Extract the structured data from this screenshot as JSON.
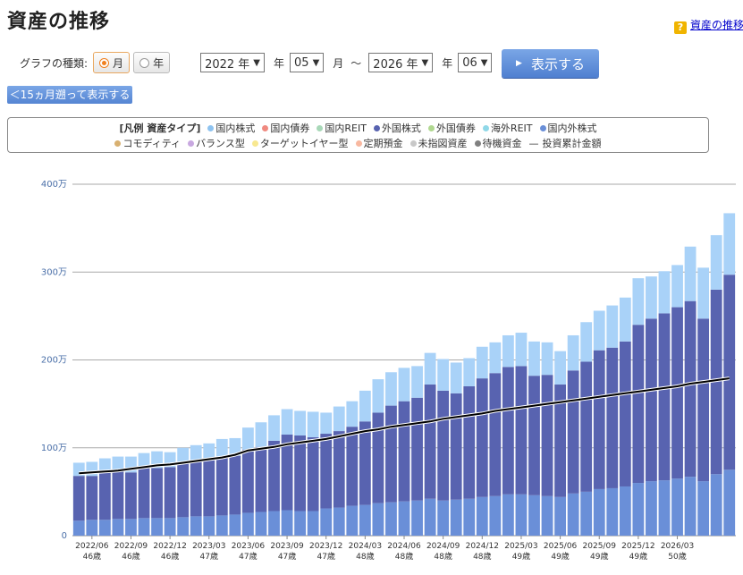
{
  "page": {
    "title": "資産の推移",
    "help_link": "資産の推移"
  },
  "controls": {
    "type_label": "グラフの種類:",
    "radio_month": "月",
    "radio_year": "年",
    "selected_type": "月",
    "start_year": "2022 年",
    "year_suffix": "年",
    "start_month": "05",
    "month_suffix": "月",
    "range_sep": "～",
    "end_year": "2026 年",
    "end_month": "06",
    "show_button": "表示する",
    "back_button": "＜15ヵ月遡って表示する"
  },
  "legend": {
    "header": "[凡例 資産タイプ]",
    "items": [
      {
        "label": "国内株式",
        "color": "#8ec3f0"
      },
      {
        "label": "国内債券",
        "color": "#f08a80"
      },
      {
        "label": "国内REIT",
        "color": "#a8d8b8"
      },
      {
        "label": "外国株式",
        "color": "#5863b0"
      },
      {
        "label": "外国債券",
        "color": "#b0d890"
      },
      {
        "label": "海外REIT",
        "color": "#90d8e8"
      },
      {
        "label": "国内外株式",
        "color": "#6a8fd8"
      },
      {
        "label": "コモディティ",
        "color": "#d8b070"
      },
      {
        "label": "バランス型",
        "color": "#c8a8e0"
      },
      {
        "label": "ターゲットイヤー型",
        "color": "#f8e890"
      },
      {
        "label": "定期預金",
        "color": "#f8b8a0"
      },
      {
        "label": "未指図資産",
        "color": "#c8c8c8"
      },
      {
        "label": "待機資金",
        "color": "#808080"
      }
    ],
    "line_label": "投資累計金額",
    "line_symbol": "—"
  },
  "chart_data": {
    "type": "bar",
    "stacked": true,
    "y_unit": "万",
    "ylim": [
      0,
      400
    ],
    "y_ticks": [
      "0",
      "100万",
      "200万",
      "300万",
      "400万"
    ],
    "y_tick_values": [
      0,
      100,
      200,
      300,
      400
    ],
    "x_tick_labels": [
      {
        "date": "2022/06",
        "age": "46歳",
        "index": 1
      },
      {
        "date": "2022/09",
        "age": "46歳",
        "index": 4
      },
      {
        "date": "2022/12",
        "age": "46歳",
        "index": 7
      },
      {
        "date": "2023/03",
        "age": "47歳",
        "index": 10
      },
      {
        "date": "2023/06",
        "age": "47歳",
        "index": 13
      },
      {
        "date": "2023/09",
        "age": "47歳",
        "index": 16
      },
      {
        "date": "2023/12",
        "age": "47歳",
        "index": 19
      },
      {
        "date": "2024/03",
        "age": "48歳",
        "index": 22
      },
      {
        "date": "2024/06",
        "age": "48歳",
        "index": 25
      },
      {
        "date": "2024/09",
        "age": "48歳",
        "index": 28
      },
      {
        "date": "2024/12",
        "age": "48歳",
        "index": 31
      },
      {
        "date": "2025/03",
        "age": "49歳",
        "index": 34
      },
      {
        "date": "2025/06",
        "age": "49歳",
        "index": 37
      },
      {
        "date": "2025/09",
        "age": "49歳",
        "index": 40
      },
      {
        "date": "2025/12",
        "age": "49歳",
        "index": 43
      },
      {
        "date": "2026/03",
        "age": "50歳",
        "index": 46
      }
    ],
    "x_start": "2022/05",
    "x_end": "2026/06",
    "series": [
      {
        "name": "国内外株式",
        "color": "#6a8fd8",
        "values": [
          17,
          18,
          18,
          19,
          19,
          20,
          20,
          20,
          21,
          22,
          22,
          23,
          24,
          26,
          27,
          28,
          29,
          28,
          28,
          31,
          32,
          34,
          35,
          37,
          38,
          39,
          40,
          42,
          40,
          41,
          42,
          44,
          45,
          47,
          47,
          46,
          45,
          44,
          48,
          50,
          53,
          54,
          56,
          60,
          62,
          63,
          65,
          67,
          62,
          70,
          75
        ]
      },
      {
        "name": "外国株式",
        "color": "#5863b0",
        "values": [
          51,
          50,
          55,
          55,
          53,
          58,
          57,
          58,
          63,
          63,
          64,
          66,
          67,
          72,
          74,
          80,
          86,
          86,
          84,
          85,
          87,
          90,
          95,
          103,
          110,
          114,
          117,
          130,
          125,
          121,
          128,
          135,
          140,
          145,
          146,
          136,
          138,
          128,
          140,
          148,
          158,
          160,
          165,
          180,
          185,
          190,
          195,
          200,
          185,
          210,
          222
        ]
      },
      {
        "name": "国内株式",
        "color": "#a9d2f8",
        "values": [
          15,
          16,
          15,
          16,
          18,
          16,
          19,
          17,
          16,
          18,
          19,
          21,
          20,
          25,
          28,
          29,
          29,
          28,
          29,
          24,
          28,
          29,
          35,
          38,
          38,
          38,
          36,
          36,
          36,
          35,
          32,
          36,
          35,
          36,
          38,
          39,
          37,
          38,
          40,
          45,
          45,
          48,
          50,
          53,
          48,
          48,
          48,
          62,
          58,
          62,
          70
        ]
      }
    ],
    "cumulative_line": {
      "name": "投資累計金額",
      "color": "#000000",
      "values": [
        71,
        72,
        73,
        74,
        76,
        78,
        80,
        81,
        83,
        85,
        87,
        89,
        92,
        97,
        99,
        101,
        104,
        106,
        108,
        110,
        113,
        116,
        119,
        121,
        124,
        126,
        128,
        130,
        133,
        135,
        137,
        139,
        142,
        144,
        146,
        148,
        150,
        152,
        154,
        156,
        158,
        160,
        162,
        164,
        166,
        168,
        170,
        173,
        175,
        177,
        179
      ]
    }
  }
}
